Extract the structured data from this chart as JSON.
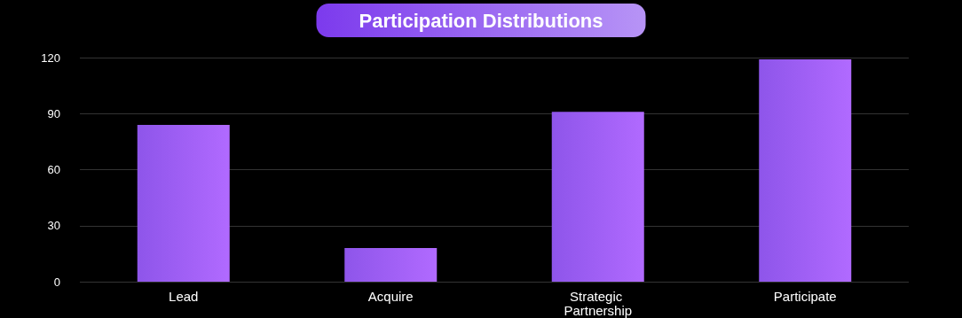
{
  "chart_data": {
    "type": "bar",
    "title": "Participation Distributions",
    "categories": [
      "Lead",
      "Acquire",
      "Strategic Partnership",
      "Participate"
    ],
    "values": [
      84,
      18,
      91,
      119
    ],
    "color": "#8e55ea",
    "ylim": [
      0,
      120
    ],
    "yticks": [
      0,
      30,
      60,
      90,
      120
    ],
    "grid": "y"
  }
}
